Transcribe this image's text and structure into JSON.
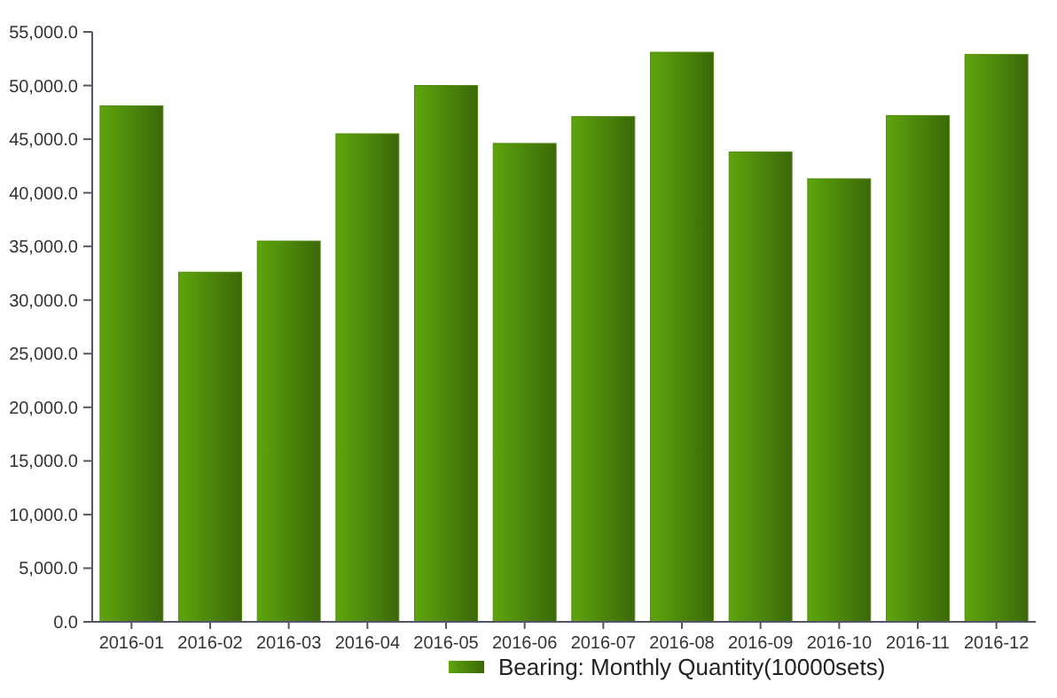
{
  "chart_data": {
    "type": "bar",
    "categories": [
      "2016-01",
      "2016-02",
      "2016-03",
      "2016-04",
      "2016-05",
      "2016-06",
      "2016-07",
      "2016-08",
      "2016-09",
      "2016-10",
      "2016-11",
      "2016-12"
    ],
    "series": [
      {
        "name": "Bearing: Monthly Quantity(10000sets)",
        "color": "#4f8a0b",
        "values": [
          48100,
          32600,
          35500,
          45500,
          50000,
          44600,
          47100,
          53100,
          43800,
          41300,
          47200,
          52900
        ]
      }
    ],
    "ylim": [
      0,
      55000
    ],
    "yticks": [
      {
        "value": 0,
        "label": "0.0"
      },
      {
        "value": 5000,
        "label": "5,000.0"
      },
      {
        "value": 10000,
        "label": "10,000.0"
      },
      {
        "value": 15000,
        "label": "15,000.0"
      },
      {
        "value": 20000,
        "label": "20,000.0"
      },
      {
        "value": 25000,
        "label": "25,000.0"
      },
      {
        "value": 30000,
        "label": "30,000.0"
      },
      {
        "value": 35000,
        "label": "35,000.0"
      },
      {
        "value": 40000,
        "label": "40,000.0"
      },
      {
        "value": 45000,
        "label": "45,000.0"
      },
      {
        "value": 50000,
        "label": "50,000.0"
      },
      {
        "value": 55000,
        "label": "55,000.0"
      }
    ],
    "legend": "bottom",
    "grid": false
  }
}
